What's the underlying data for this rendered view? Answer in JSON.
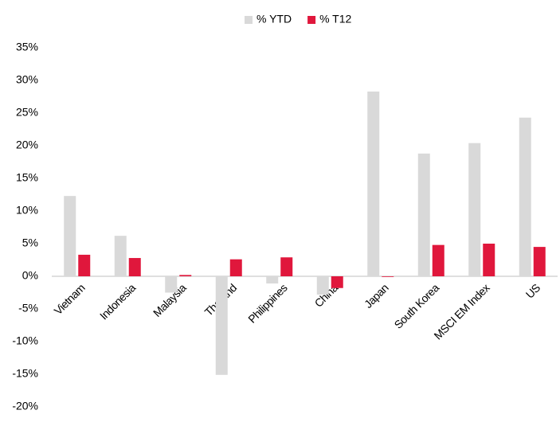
{
  "chart_data": {
    "type": "bar",
    "categories": [
      "Vietnam",
      "Indonesia",
      "Malaysia",
      "Thailand",
      "Philippines",
      "China",
      "Japan",
      "South Korea",
      "MSCI EM Index",
      "US"
    ],
    "series": [
      {
        "name": "% YTD",
        "color": "#d9d9d9",
        "values": [
          12.3,
          6.2,
          -2.5,
          -15.1,
          -1.1,
          -2.8,
          28.3,
          18.8,
          20.4,
          24.3
        ]
      },
      {
        "name": "% T12",
        "color": "#e0173c",
        "values": [
          3.3,
          2.8,
          0.2,
          2.6,
          2.9,
          -1.8,
          -0.1,
          4.8,
          5.0,
          4.5
        ]
      }
    ],
    "ylim": [
      -20,
      35
    ],
    "yticks": [
      {
        "value": 35,
        "label": "35%"
      },
      {
        "value": 30,
        "label": "30%"
      },
      {
        "value": 25,
        "label": "25%"
      },
      {
        "value": 20,
        "label": "20%"
      },
      {
        "value": 15,
        "label": "15%"
      },
      {
        "value": 10,
        "label": "10%"
      },
      {
        "value": 5,
        "label": "5%"
      },
      {
        "value": 0,
        "label": "0%"
      },
      {
        "value": -5,
        "label": "-5%"
      },
      {
        "value": -10,
        "label": "-10%"
      },
      {
        "value": -15,
        "label": "-15%"
      },
      {
        "value": -20,
        "label": "-20%"
      }
    ],
    "legend": "top"
  }
}
